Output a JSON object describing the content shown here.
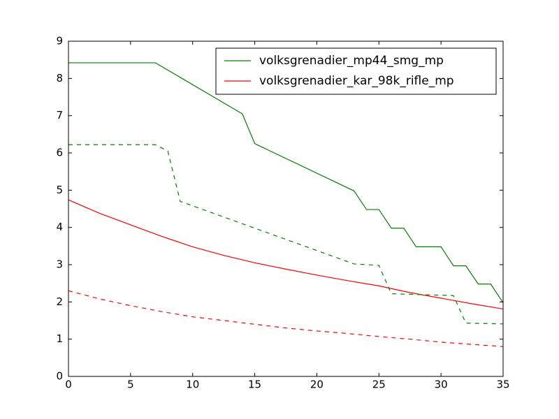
{
  "chart_data": {
    "type": "line",
    "xlim": [
      0,
      35
    ],
    "xticks": [
      0,
      5,
      10,
      15,
      20,
      25,
      30,
      35
    ],
    "ylim": [
      0,
      9
    ],
    "yticks": [
      0,
      1,
      2,
      3,
      4,
      5,
      6,
      7,
      8,
      9
    ],
    "legend": "upper right",
    "series": [
      {
        "name": "volksgrenadier_mp44_smg_mp",
        "color": "#008000",
        "linestyle": "solid",
        "x": [
          0,
          7,
          14,
          15,
          23,
          24,
          25,
          26,
          27,
          28,
          30,
          31,
          32,
          33,
          34,
          35
        ],
        "values": [
          8.42,
          8.42,
          7.05,
          6.25,
          4.98,
          4.48,
          4.48,
          3.98,
          3.98,
          3.48,
          3.48,
          2.97,
          2.97,
          2.48,
          2.48,
          1.98
        ]
      },
      {
        "name": "volksgrenadier_kar_98k_rifle_mp",
        "color": "#ff0000",
        "linestyle": "solid",
        "x": [
          0,
          2.5,
          5,
          7.5,
          10,
          12.5,
          15,
          17.5,
          20,
          22.5,
          25,
          27.5,
          30,
          32.5,
          35
        ],
        "values": [
          4.74,
          4.38,
          4.07,
          3.76,
          3.48,
          3.25,
          3.05,
          2.88,
          2.72,
          2.57,
          2.43,
          2.25,
          2.1,
          1.95,
          1.81
        ]
      },
      {
        "color": "#008000",
        "linestyle": "dashed",
        "x": [
          0,
          7,
          8,
          9,
          23,
          25,
          26,
          28,
          31,
          32,
          35
        ],
        "values": [
          6.22,
          6.22,
          6.05,
          4.7,
          3.02,
          2.98,
          2.22,
          2.2,
          2.17,
          1.43,
          1.41
        ]
      },
      {
        "color": "#ff0000",
        "linestyle": "dashed",
        "x": [
          0,
          2.5,
          5,
          7.5,
          10,
          12.5,
          15,
          17.5,
          20,
          22.5,
          25,
          27.5,
          30,
          32.5,
          35
        ],
        "values": [
          2.3,
          2.08,
          1.9,
          1.74,
          1.6,
          1.5,
          1.4,
          1.3,
          1.22,
          1.15,
          1.07,
          1.0,
          0.92,
          0.86,
          0.8
        ]
      }
    ]
  }
}
